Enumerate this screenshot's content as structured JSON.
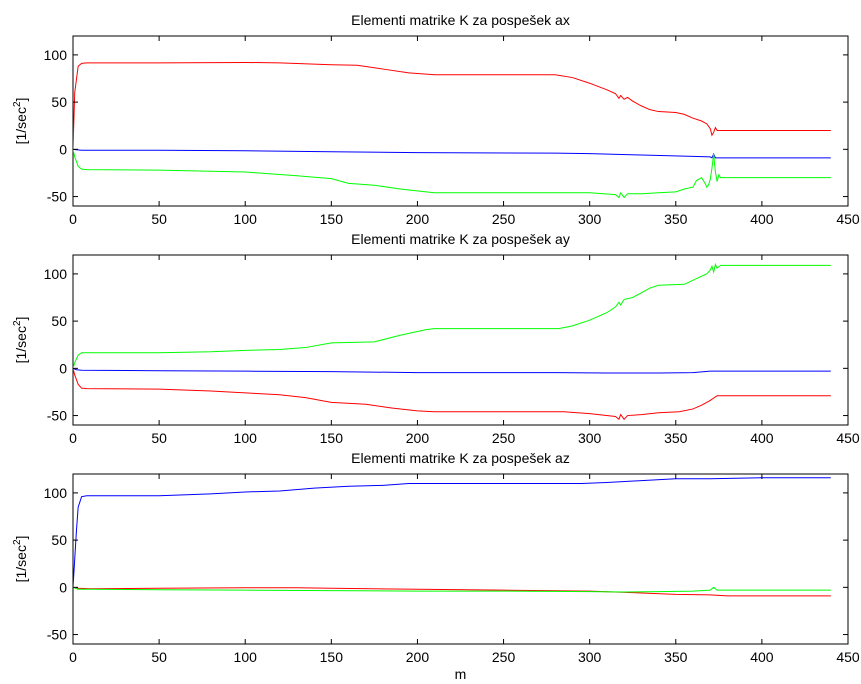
{
  "chart_data": [
    {
      "type": "line",
      "title": "Elementi matrike K za pospešek ax",
      "xlabel": "",
      "ylabel_base": "[1/sec",
      "ylabel_sup": "2",
      "ylabel_close": "]",
      "xlim": [
        0,
        450
      ],
      "ylim": [
        -60,
        120
      ],
      "xticks": [
        0,
        50,
        100,
        150,
        200,
        250,
        300,
        350,
        400,
        450
      ],
      "yticks": [
        -50,
        0,
        50,
        100
      ],
      "grid": false,
      "series": [
        {
          "color": "#ff0000",
          "points": [
            [
              0,
              0
            ],
            [
              1,
              60
            ],
            [
              3,
              88
            ],
            [
              5,
              91
            ],
            [
              8,
              91.5
            ],
            [
              50,
              91.5
            ],
            [
              100,
              92
            ],
            [
              120,
              91.5
            ],
            [
              150,
              89.5
            ],
            [
              165,
              89
            ],
            [
              180,
              85
            ],
            [
              195,
              81
            ],
            [
              210,
              79
            ],
            [
              250,
              79
            ],
            [
              280,
              79
            ],
            [
              290,
              76
            ],
            [
              300,
              70
            ],
            [
              310,
              63
            ],
            [
              315,
              59
            ],
            [
              317,
              54
            ],
            [
              318,
              57
            ],
            [
              320,
              53
            ],
            [
              322,
              55
            ],
            [
              325,
              51
            ],
            [
              330,
              46
            ],
            [
              335,
              42
            ],
            [
              340,
              40
            ],
            [
              350,
              39
            ],
            [
              355,
              37
            ],
            [
              360,
              33
            ],
            [
              365,
              30
            ],
            [
              368,
              27
            ],
            [
              370,
              22
            ],
            [
              371,
              15
            ],
            [
              372,
              18
            ],
            [
              373,
              23
            ],
            [
              374,
              20
            ],
            [
              376,
              20
            ],
            [
              380,
              20
            ],
            [
              440,
              20
            ]
          ]
        },
        {
          "color": "#0000ff",
          "points": [
            [
              0,
              0
            ],
            [
              2,
              -0.5
            ],
            [
              5,
              -1
            ],
            [
              50,
              -1
            ],
            [
              100,
              -1.5
            ],
            [
              150,
              -2.5
            ],
            [
              200,
              -3.5
            ],
            [
              280,
              -4
            ],
            [
              300,
              -4.5
            ],
            [
              330,
              -6
            ],
            [
              360,
              -7.5
            ],
            [
              370,
              -8
            ],
            [
              371,
              -9
            ],
            [
              372,
              -5
            ],
            [
              373,
              -9
            ],
            [
              380,
              -9
            ],
            [
              440,
              -9
            ]
          ]
        },
        {
          "color": "#00ff00",
          "points": [
            [
              0,
              0
            ],
            [
              1,
              -8
            ],
            [
              3,
              -18
            ],
            [
              5,
              -21
            ],
            [
              8,
              -21.5
            ],
            [
              50,
              -22
            ],
            [
              100,
              -24
            ],
            [
              130,
              -28
            ],
            [
              150,
              -31
            ],
            [
              160,
              -36
            ],
            [
              175,
              -38
            ],
            [
              190,
              -42
            ],
            [
              205,
              -45
            ],
            [
              210,
              -46
            ],
            [
              250,
              -46
            ],
            [
              280,
              -46
            ],
            [
              300,
              -46
            ],
            [
              315,
              -48
            ],
            [
              317,
              -51
            ],
            [
              318,
              -46
            ],
            [
              320,
              -51
            ],
            [
              322,
              -47
            ],
            [
              330,
              -47
            ],
            [
              340,
              -46
            ],
            [
              350,
              -45
            ],
            [
              355,
              -42
            ],
            [
              360,
              -40
            ],
            [
              362,
              -33
            ],
            [
              365,
              -30
            ],
            [
              367,
              -36
            ],
            [
              368,
              -40
            ],
            [
              369,
              -38
            ],
            [
              370,
              -32
            ],
            [
              371,
              -20
            ],
            [
              372,
              -5
            ],
            [
              373,
              -24
            ],
            [
              374,
              -34
            ],
            [
              375,
              -27
            ],
            [
              376,
              -30
            ],
            [
              380,
              -30
            ],
            [
              440,
              -30
            ]
          ]
        }
      ]
    },
    {
      "type": "line",
      "title": "Elementi matrike K za pospešek ay",
      "xlabel": "",
      "ylabel_base": "[1/sec",
      "ylabel_sup": "2",
      "ylabel_close": "]",
      "xlim": [
        0,
        450
      ],
      "ylim": [
        -60,
        120
      ],
      "xticks": [
        0,
        50,
        100,
        150,
        200,
        250,
        300,
        350,
        400,
        450
      ],
      "yticks": [
        -50,
        0,
        50,
        100
      ],
      "grid": false,
      "series": [
        {
          "color": "#00ff00",
          "points": [
            [
              0,
              0
            ],
            [
              1,
              6
            ],
            [
              3,
              14
            ],
            [
              5,
              16.5
            ],
            [
              8,
              16.5
            ],
            [
              50,
              16.5
            ],
            [
              80,
              17.5
            ],
            [
              100,
              19
            ],
            [
              120,
              20
            ],
            [
              135,
              22
            ],
            [
              150,
              27
            ],
            [
              175,
              28
            ],
            [
              190,
              35
            ],
            [
              205,
              41
            ],
            [
              210,
              42
            ],
            [
              250,
              42
            ],
            [
              282,
              42
            ],
            [
              290,
              45
            ],
            [
              300,
              51
            ],
            [
              310,
              59
            ],
            [
              315,
              65
            ],
            [
              317,
              70
            ],
            [
              318,
              67
            ],
            [
              320,
              73
            ],
            [
              325,
              75
            ],
            [
              330,
              80
            ],
            [
              335,
              85
            ],
            [
              340,
              88
            ],
            [
              355,
              89
            ],
            [
              362,
              95
            ],
            [
              368,
              100
            ],
            [
              370,
              104
            ],
            [
              371,
              108
            ],
            [
              372,
              102
            ],
            [
              373,
              110
            ],
            [
              374,
              106
            ],
            [
              376,
              109
            ],
            [
              380,
              109
            ],
            [
              440,
              109
            ]
          ]
        },
        {
          "color": "#0000ff",
          "points": [
            [
              0,
              0
            ],
            [
              2,
              -1.5
            ],
            [
              5,
              -2
            ],
            [
              50,
              -2.5
            ],
            [
              100,
              -3
            ],
            [
              150,
              -3.5
            ],
            [
              200,
              -4.5
            ],
            [
              280,
              -4.5
            ],
            [
              310,
              -5
            ],
            [
              340,
              -5
            ],
            [
              360,
              -4.5
            ],
            [
              370,
              -3
            ],
            [
              380,
              -3
            ],
            [
              440,
              -3
            ]
          ]
        },
        {
          "color": "#ff0000",
          "points": [
            [
              0,
              0
            ],
            [
              1,
              -7
            ],
            [
              3,
              -17
            ],
            [
              5,
              -21
            ],
            [
              8,
              -21.5
            ],
            [
              50,
              -22
            ],
            [
              80,
              -24
            ],
            [
              100,
              -26
            ],
            [
              120,
              -28
            ],
            [
              135,
              -31
            ],
            [
              150,
              -36
            ],
            [
              170,
              -38
            ],
            [
              185,
              -42
            ],
            [
              200,
              -45
            ],
            [
              210,
              -46
            ],
            [
              250,
              -46
            ],
            [
              285,
              -46
            ],
            [
              300,
              -48
            ],
            [
              315,
              -51
            ],
            [
              317,
              -54
            ],
            [
              318,
              -49
            ],
            [
              320,
              -54
            ],
            [
              322,
              -50
            ],
            [
              330,
              -49
            ],
            [
              340,
              -47
            ],
            [
              352,
              -46
            ],
            [
              360,
              -43
            ],
            [
              365,
              -39
            ],
            [
              370,
              -34
            ],
            [
              374,
              -29
            ],
            [
              380,
              -29
            ],
            [
              440,
              -29
            ]
          ]
        }
      ]
    },
    {
      "type": "line",
      "title": "Elementi matrike K za pospešek az",
      "xlabel": "m",
      "ylabel_base": "[1/sec",
      "ylabel_sup": "2",
      "ylabel_close": "]",
      "xlim": [
        0,
        450
      ],
      "ylim": [
        -60,
        120
      ],
      "xticks": [
        0,
        50,
        100,
        150,
        200,
        250,
        300,
        350,
        400,
        450
      ],
      "yticks": [
        -50,
        0,
        50,
        100
      ],
      "grid": false,
      "series": [
        {
          "color": "#0000ff",
          "points": [
            [
              0,
              0
            ],
            [
              1,
              30
            ],
            [
              2,
              60
            ],
            [
              3,
              85
            ],
            [
              5,
              96
            ],
            [
              8,
              97
            ],
            [
              50,
              97
            ],
            [
              80,
              99
            ],
            [
              100,
              101
            ],
            [
              120,
              102
            ],
            [
              140,
              105
            ],
            [
              160,
              107
            ],
            [
              180,
              108
            ],
            [
              195,
              110
            ],
            [
              210,
              110
            ],
            [
              250,
              110
            ],
            [
              295,
              110
            ],
            [
              310,
              111
            ],
            [
              330,
              113
            ],
            [
              350,
              115
            ],
            [
              370,
              115
            ],
            [
              400,
              116
            ],
            [
              440,
              116
            ]
          ]
        },
        {
          "color": "#ff0000",
          "points": [
            [
              0,
              0
            ],
            [
              3,
              -1
            ],
            [
              10,
              -1.5
            ],
            [
              50,
              -1
            ],
            [
              100,
              -0.5
            ],
            [
              130,
              -0.5
            ],
            [
              150,
              -1
            ],
            [
              200,
              -2
            ],
            [
              250,
              -3
            ],
            [
              300,
              -4
            ],
            [
              330,
              -6
            ],
            [
              350,
              -7.5
            ],
            [
              370,
              -8
            ],
            [
              380,
              -9
            ],
            [
              440,
              -9
            ]
          ]
        },
        {
          "color": "#00ff00",
          "points": [
            [
              0,
              0
            ],
            [
              3,
              -2
            ],
            [
              10,
              -2
            ],
            [
              50,
              -2.5
            ],
            [
              100,
              -3
            ],
            [
              150,
              -3.5
            ],
            [
              200,
              -4
            ],
            [
              250,
              -4
            ],
            [
              300,
              -4.5
            ],
            [
              320,
              -5
            ],
            [
              340,
              -4.5
            ],
            [
              360,
              -4
            ],
            [
              370,
              -3
            ],
            [
              372,
              0
            ],
            [
              374,
              -3
            ],
            [
              380,
              -3
            ],
            [
              440,
              -3
            ]
          ]
        }
      ]
    }
  ]
}
